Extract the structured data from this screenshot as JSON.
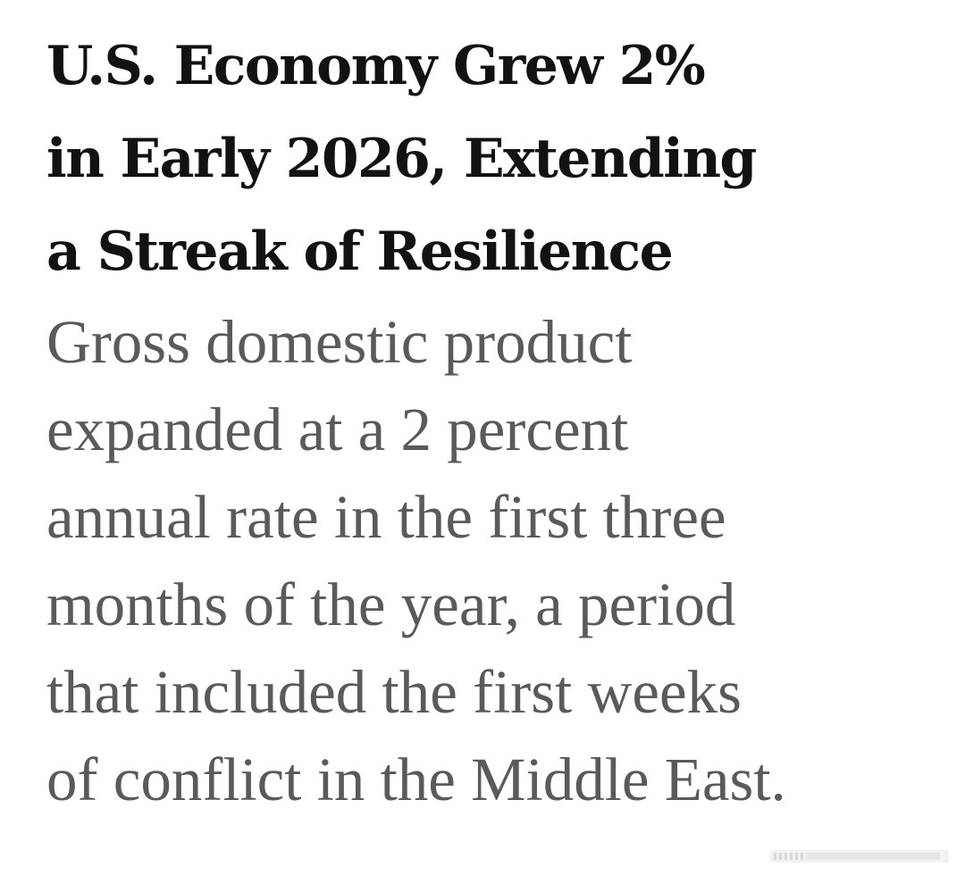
{
  "article": {
    "headline_lines": [
      "U.S. Economy Grew 2%",
      "in Early 2026, Extending",
      "a Streak of Resilience"
    ],
    "summary_lines": [
      "Gross domestic product",
      "expanded at a 2 percent",
      "annual rate in the first three",
      "months of the year, a period",
      "that included the first weeks",
      "of conflict in the Middle East."
    ]
  },
  "watermark": {
    "icon": "platform-watermark-icon"
  }
}
